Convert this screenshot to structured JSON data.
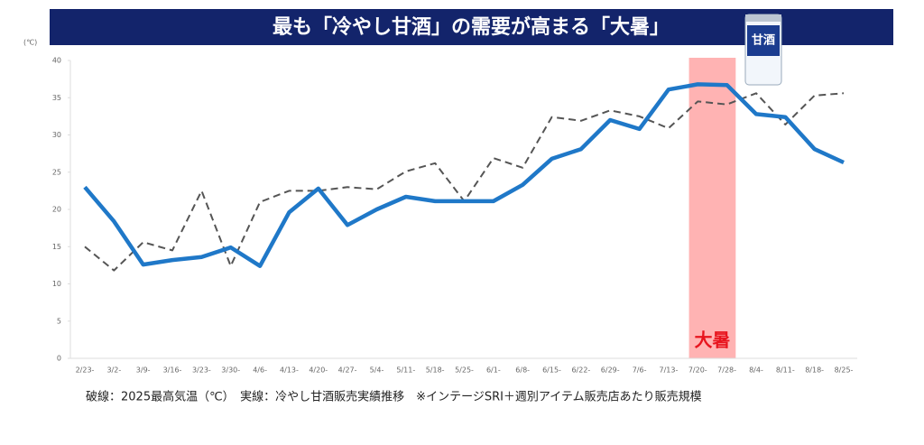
{
  "chart_data": {
    "type": "line",
    "title": "最も「冷やし甘酒」の需要が高まる「大暑」",
    "y_unit": "(℃)",
    "caption": "破線：2025最高気温（℃）　実線：冷やし甘酒販売実績推移　※インテージSRI＋週別アイテム販売店あたり販売規模",
    "product_label": "甘酒",
    "categories": [
      "2/23-",
      "3/2-",
      "3/9-",
      "3/16-",
      "3/23-",
      "3/30-",
      "4/6-",
      "4/13-",
      "4/20-",
      "4/27-",
      "5/4-",
      "5/11-",
      "5/18-",
      "5/25-",
      "6/1-",
      "6/8-",
      "6/15-",
      "6/22-",
      "6/29-",
      "7/6-",
      "7/13-",
      "7/20-",
      "7/28-",
      "8/4-",
      "8/11-",
      "8/18-",
      "8/25-"
    ],
    "series": [
      {
        "color": "#555555",
        "style": "dashed",
        "values": [
          15,
          11.8,
          15.6,
          14.5,
          22.5,
          12.4,
          21,
          22.5,
          22.5,
          23,
          22.7,
          25.1,
          26.2,
          21.1,
          26.9,
          25.6,
          32.4,
          31.9,
          33.3,
          32.5,
          30.9,
          34.5,
          34.1,
          35.6,
          31.4,
          35.3,
          35.6
        ]
      },
      {
        "color": "#1f78c8",
        "style": "solid",
        "values": [
          23,
          18.4,
          12.6,
          13.2,
          13.6,
          14.9,
          12.4,
          19.6,
          22.8,
          17.9,
          20,
          21.7,
          21.1,
          21.1,
          21.1,
          23.3,
          26.8,
          28.1,
          32,
          30.8,
          36.1,
          36.8,
          36.7,
          32.8,
          32.4,
          28.1,
          26.3
        ]
      }
    ],
    "highlight": {
      "label": "大暑",
      "start": "7/20-",
      "end": "7/28-",
      "color": "#ffb3b3"
    },
    "ylim": [
      0,
      40
    ],
    "yticks": [
      0,
      5,
      10,
      15,
      20,
      25,
      30,
      35,
      40
    ],
    "grid": false
  }
}
